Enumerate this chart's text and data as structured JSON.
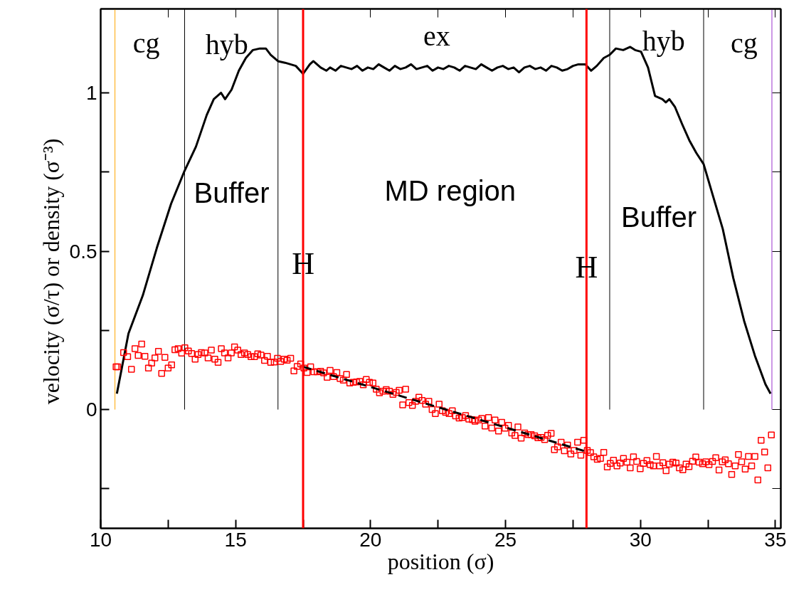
{
  "chart_data": {
    "type": "line",
    "xlabel": "position (σ)",
    "ylabel": "velocity (σ/τ)  or density (σ⁻³)",
    "xlim": [
      10,
      35.2
    ],
    "ylim": [
      -0.375,
      1.265
    ],
    "xticks": [
      10,
      {
        "value": 12.5,
        "label": null
      },
      15,
      {
        "value": 17.5,
        "label": null
      },
      20,
      {
        "value": 22.5,
        "label": null
      },
      25,
      {
        "value": 27.5,
        "label": null
      },
      30,
      {
        "value": 32.5,
        "label": null
      },
      35
    ],
    "yticks": [
      {
        "value": -0.25,
        "label": null
      },
      0,
      {
        "value": 0.25,
        "label": null
      },
      0.5,
      {
        "value": 0.75,
        "label": null
      },
      1
    ],
    "grid": false,
    "series": [
      {
        "color": "#ffa500",
        "x": [
          10.53,
          10.53
        ],
        "values": [
          0,
          1.265
        ]
      },
      {
        "color": "#000000",
        "x": [
          13.11,
          13.11
        ],
        "values": [
          0,
          1.265
        ]
      },
      {
        "color": "#000000",
        "x": [
          16.57,
          16.57
        ],
        "values": [
          0,
          1.265
        ]
      },
      {
        "color": "#000000",
        "x": [
          28.86,
          28.86
        ],
        "values": [
          0,
          1.265
        ]
      },
      {
        "color": "#000000",
        "x": [
          32.34,
          32.34
        ],
        "values": [
          0,
          1.265
        ]
      },
      {
        "color": "#9933cc",
        "x": [
          34.87,
          34.87
        ],
        "values": [
          0,
          1.265
        ]
      },
      {
        "color": "#000000",
        "marker": "none",
        "line_style": "solid",
        "x": [
          10.6,
          11.03,
          11.56,
          12.08,
          12.61,
          13.09,
          13.53,
          13.93,
          14.19,
          14.46,
          14.61,
          14.85,
          15.12,
          15.38,
          15.64,
          15.9,
          16.12,
          16.3,
          16.57,
          16.83,
          17.23,
          17.5,
          17.75,
          17.88,
          18.15,
          18.36,
          18.5,
          18.7,
          18.9,
          19.1,
          19.3,
          19.5,
          19.7,
          19.9,
          20.1,
          20.3,
          20.5,
          20.7,
          20.9,
          21.1,
          21.3,
          21.5,
          21.7,
          21.9,
          22.1,
          22.3,
          22.5,
          22.7,
          22.9,
          23.1,
          23.3,
          23.5,
          23.7,
          23.9,
          24.1,
          24.3,
          24.5,
          24.7,
          24.9,
          25.1,
          25.3,
          25.5,
          25.7,
          25.9,
          26.1,
          26.3,
          26.5,
          26.7,
          26.9,
          27.1,
          27.3,
          27.5,
          27.7,
          27.96,
          28.17,
          28.38,
          28.64,
          28.86,
          29.09,
          29.36,
          29.62,
          29.8,
          30.02,
          30.28,
          30.54,
          30.81,
          30.94,
          31.07,
          31.28,
          31.55,
          31.81,
          32.07,
          32.34,
          32.65,
          33.05,
          33.44,
          33.84,
          34.24,
          34.63,
          34.82
        ],
        "values": [
          0.05,
          0.24,
          0.36,
          0.51,
          0.65,
          0.75,
          0.83,
          0.93,
          0.98,
          1.0,
          0.98,
          1.01,
          1.07,
          1.11,
          1.135,
          1.14,
          1.14,
          1.12,
          1.1,
          1.095,
          1.085,
          1.06,
          1.09,
          1.1,
          1.08,
          1.07,
          1.08,
          1.07,
          1.085,
          1.08,
          1.075,
          1.085,
          1.07,
          1.08,
          1.075,
          1.09,
          1.08,
          1.07,
          1.085,
          1.075,
          1.08,
          1.09,
          1.075,
          1.08,
          1.085,
          1.07,
          1.08,
          1.075,
          1.085,
          1.08,
          1.07,
          1.085,
          1.08,
          1.075,
          1.09,
          1.08,
          1.07,
          1.08,
          1.085,
          1.075,
          1.08,
          1.065,
          1.08,
          1.085,
          1.075,
          1.08,
          1.07,
          1.085,
          1.08,
          1.07,
          1.075,
          1.085,
          1.09,
          1.09,
          1.07,
          1.085,
          1.11,
          1.12,
          1.14,
          1.135,
          1.145,
          1.135,
          1.13,
          1.08,
          0.99,
          0.98,
          0.97,
          0.98,
          0.955,
          0.9,
          0.85,
          0.81,
          0.775,
          0.685,
          0.57,
          0.415,
          0.28,
          0.17,
          0.08,
          0.05
        ]
      },
      {
        "type": "scatter",
        "color": "#ff0000",
        "marker": "square",
        "x": [
          10.57,
          10.63,
          10.85,
          11.0,
          11.14,
          11.27,
          11.39,
          11.52,
          11.64,
          11.77,
          11.89,
          12.01,
          12.14,
          12.26,
          12.38,
          12.5,
          12.63,
          12.75,
          12.87,
          13.0,
          13.12,
          13.25,
          13.37,
          13.5,
          13.61,
          13.73,
          13.86,
          13.98,
          14.1,
          14.23,
          14.35,
          14.47,
          14.59,
          14.72,
          14.84,
          14.96,
          15.08,
          15.2,
          15.33,
          15.45,
          15.57,
          15.7,
          15.82,
          15.94,
          16.07,
          16.18,
          16.3,
          16.43,
          16.55,
          16.67,
          16.8,
          16.91,
          17.04,
          17.16,
          17.28,
          17.41,
          17.53,
          17.65,
          17.78,
          17.9,
          18.02,
          18.15,
          18.26,
          18.39,
          18.5,
          18.63,
          18.75,
          18.87,
          18.99,
          19.11,
          19.23,
          19.36,
          19.48,
          19.6,
          19.73,
          19.84,
          19.96,
          20.09,
          20.21,
          20.33,
          20.46,
          20.58,
          20.7,
          20.83,
          20.95,
          21.06,
          21.19,
          21.3,
          21.42,
          21.55,
          21.67,
          21.79,
          21.91,
          22.04,
          22.16,
          22.28,
          22.4,
          22.54,
          22.66,
          22.78,
          22.91,
          23.03,
          23.15,
          23.28,
          23.4,
          23.52,
          23.64,
          23.77,
          23.87,
          24.0,
          24.12,
          24.24,
          24.37,
          24.49,
          24.61,
          24.74,
          24.86,
          24.98,
          25.11,
          25.23,
          25.35,
          25.46,
          25.58,
          25.71,
          25.83,
          25.95,
          26.08,
          26.2,
          26.32,
          26.45,
          26.56,
          26.69,
          26.81,
          26.93,
          27.06,
          27.18,
          27.3,
          27.42,
          27.54,
          27.67,
          27.79,
          27.9,
          28.03,
          28.15,
          28.27,
          28.4,
          28.52,
          28.64,
          28.77,
          28.88,
          29.0,
          29.13,
          29.25,
          29.37,
          29.5,
          29.62,
          29.74,
          29.86,
          29.99,
          30.11,
          30.24,
          30.36,
          30.48,
          30.59,
          30.71,
          30.83,
          30.95,
          31.07,
          31.2,
          31.32,
          31.44,
          31.57,
          31.69,
          31.8,
          31.93,
          32.05,
          32.17,
          32.3,
          32.42,
          32.54,
          32.67,
          32.79,
          32.91,
          33.03,
          33.14,
          33.26,
          33.38,
          33.51,
          33.63,
          33.75,
          33.88,
          34.0,
          34.12,
          34.24,
          34.35,
          34.47,
          34.6,
          34.72,
          34.85
        ],
        "values": [
          0.135,
          0.135,
          0.18,
          0.167,
          0.127,
          0.192,
          0.171,
          0.207,
          0.168,
          0.131,
          0.147,
          0.163,
          0.184,
          0.114,
          0.165,
          0.131,
          0.141,
          0.189,
          0.192,
          0.178,
          0.195,
          0.185,
          0.177,
          0.159,
          0.174,
          0.18,
          0.179,
          0.163,
          0.188,
          0.159,
          0.149,
          0.192,
          0.179,
          0.163,
          0.179,
          0.198,
          0.188,
          0.174,
          0.179,
          0.174,
          0.167,
          0.167,
          0.176,
          0.172,
          0.155,
          0.168,
          0.149,
          0.15,
          0.162,
          0.152,
          0.159,
          0.156,
          0.162,
          0.122,
          0.136,
          0.144,
          0.131,
          0.117,
          0.135,
          0.119,
          0.119,
          0.121,
          0.116,
          0.102,
          0.124,
          0.104,
          0.117,
          0.098,
          0.093,
          0.111,
          0.084,
          0.086,
          0.087,
          0.089,
          0.078,
          0.095,
          0.086,
          0.084,
          0.064,
          0.053,
          0.058,
          0.063,
          0.058,
          0.048,
          0.054,
          0.061,
          0.015,
          0.064,
          0.022,
          0.013,
          0.026,
          0.039,
          0.029,
          0.017,
          0.026,
          0.0,
          -0.013,
          0.017,
          -0.004,
          -0.009,
          -0.013,
          -0.004,
          -0.02,
          -0.027,
          -0.025,
          -0.019,
          -0.03,
          -0.032,
          -0.037,
          -0.033,
          -0.028,
          -0.052,
          -0.025,
          -0.058,
          -0.033,
          -0.068,
          -0.04,
          -0.059,
          -0.05,
          -0.074,
          -0.082,
          -0.055,
          -0.09,
          -0.074,
          -0.079,
          -0.079,
          -0.083,
          -0.089,
          -0.088,
          -0.095,
          -0.081,
          -0.075,
          -0.127,
          -0.118,
          -0.103,
          -0.13,
          -0.112,
          -0.14,
          -0.129,
          -0.103,
          -0.144,
          -0.097,
          -0.129,
          -0.136,
          -0.149,
          -0.157,
          -0.154,
          -0.135,
          -0.181,
          -0.17,
          -0.16,
          -0.178,
          -0.169,
          -0.154,
          -0.166,
          -0.184,
          -0.149,
          -0.164,
          -0.187,
          -0.17,
          -0.161,
          -0.174,
          -0.178,
          -0.148,
          -0.178,
          -0.168,
          -0.193,
          -0.172,
          -0.166,
          -0.169,
          -0.184,
          -0.19,
          -0.172,
          -0.18,
          -0.163,
          -0.15,
          -0.166,
          -0.171,
          -0.165,
          -0.174,
          -0.164,
          -0.152,
          -0.191,
          -0.165,
          -0.159,
          -0.171,
          -0.205,
          -0.178,
          -0.142,
          -0.165,
          -0.188,
          -0.148,
          -0.178,
          -0.148,
          -0.222,
          -0.097,
          -0.134,
          -0.184,
          -0.08
        ]
      },
      {
        "color": "#000000",
        "line_style": "dashed",
        "x": [
          17.5,
          28
        ],
        "values": [
          0.135,
          -0.133
        ]
      }
    ],
    "ref_lines": [
      {
        "axis": "x",
        "value": 17.5,
        "color": "#ff0000",
        "label": "H"
      },
      {
        "axis": "x",
        "value": 28,
        "color": "#ff0000",
        "label": "H"
      }
    ],
    "annotations": [
      "cg",
      "hyb",
      "ex",
      "hyb",
      "cg",
      "Buffer",
      "MD region",
      "Buffer"
    ]
  }
}
